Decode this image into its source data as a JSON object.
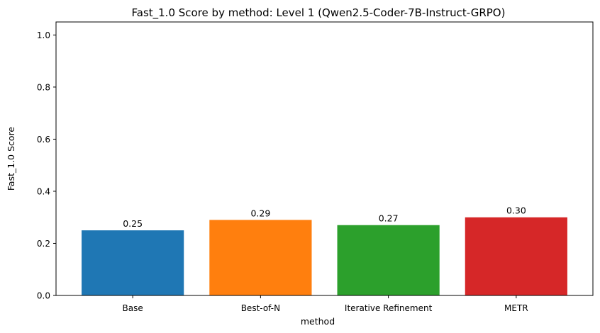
{
  "chart_data": {
    "type": "bar",
    "title": "Fast_1.0 Score by method: Level 1 (Qwen2.5-Coder-7B-Instruct-GRPO)",
    "xlabel": "method",
    "ylabel": "Fast_1.0 Score",
    "categories": [
      "Base",
      "Best-of-N",
      "Iterative Refinement",
      "METR"
    ],
    "values": [
      0.25,
      0.29,
      0.27,
      0.3
    ],
    "data_labels": [
      "0.25",
      "0.29",
      "0.27",
      "0.30"
    ],
    "colors": [
      "#1f77b4",
      "#ff7f0e",
      "#2ca02c",
      "#d62728"
    ],
    "ylim": [
      0,
      1.05
    ],
    "yticks": [
      0.0,
      0.2,
      0.4,
      0.6,
      0.8,
      1.0
    ],
    "ytick_labels": [
      "0.0",
      "0.2",
      "0.4",
      "0.6",
      "0.8",
      "1.0"
    ],
    "grid": false,
    "legend": "none"
  }
}
